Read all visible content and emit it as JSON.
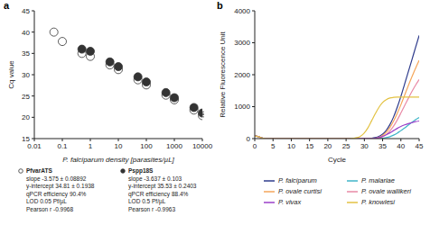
{
  "chart_data": [
    {
      "type": "scatter",
      "title": "a",
      "x_label": "P. falciparum density [parasites/µL]",
      "y_label": "Cq value",
      "log": "x",
      "grid": false,
      "xlim": [
        0.01,
        10000
      ],
      "xticks": [
        0.01,
        0.1,
        1,
        10,
        100,
        1000,
        10000
      ],
      "ylim": [
        15,
        45
      ],
      "yticks": [
        15,
        20,
        25,
        30,
        35,
        40,
        45
      ],
      "x": [
        0.05,
        0.1,
        0.5,
        1,
        5,
        10,
        50,
        100,
        500,
        1000,
        5000,
        10000
      ],
      "series": [
        {
          "name": "PfvarATS",
          "color": "#333333",
          "marker": "circle_open",
          "values": [
            40.0,
            37.8,
            35.0,
            34.3,
            32.3,
            31.2,
            28.8,
            27.6,
            25.2,
            24.1,
            21.7,
            20.4
          ],
          "errors": [
            0.5,
            0.6,
            0.3,
            0.3,
            0.3,
            0.3,
            0.3,
            0.3,
            0.3,
            0.3,
            0.3,
            0.3
          ],
          "annotation": [
            "slope -3.575 ± 0.08892",
            "y-intercept 34.81 ± 0.1938",
            "qPCR efficiency 90.4%",
            "LOD 0.05 Pf/µL",
            "Pearson r -0.9968"
          ]
        },
        {
          "name": "Pspp18S",
          "color": "#333333",
          "marker": "circle",
          "values": [
            null,
            null,
            36.0,
            35.5,
            33.0,
            31.9,
            29.5,
            28.3,
            25.8,
            24.6,
            22.3,
            21.0
          ],
          "errors": [
            null,
            null,
            0.3,
            0.3,
            0.3,
            0.3,
            0.3,
            0.3,
            0.3,
            0.3,
            0.3,
            0.3
          ],
          "annotation": [
            "slope -3.637 ± 0.103",
            "y-intercept 35.53 ± 0.2403",
            "qPCR efficiency 88.4%",
            "LOD 0.5 Pf/µL",
            "Pearson r -0.9963"
          ]
        }
      ]
    },
    {
      "type": "line",
      "title": "b",
      "x_label": "Cycle",
      "y_label": "Relative Fluorescence Unit",
      "grid": false,
      "legend": "bottom",
      "xlim": [
        0,
        45
      ],
      "xticks": [
        0,
        5,
        10,
        15,
        20,
        25,
        30,
        35,
        40,
        45
      ],
      "ylim": [
        0,
        4000
      ],
      "yticks": [
        0,
        1000,
        2000,
        3000,
        4000
      ],
      "x": [
        0,
        1,
        2,
        3,
        4,
        5,
        6,
        7,
        8,
        9,
        10,
        11,
        12,
        13,
        14,
        15,
        16,
        17,
        18,
        19,
        20,
        21,
        22,
        23,
        24,
        25,
        26,
        27,
        28,
        29,
        30,
        31,
        32,
        33,
        34,
        35,
        36,
        37,
        38,
        39,
        40,
        41,
        42,
        43,
        44,
        45
      ],
      "series": [
        {
          "name": "P. falciparum",
          "color": "#2e3b8c",
          "values": [
            80,
            60,
            20,
            0,
            0,
            0,
            0,
            0,
            0,
            0,
            0,
            0,
            0,
            0,
            0,
            0,
            0,
            0,
            0,
            0,
            0,
            0,
            0,
            0,
            0,
            0,
            0,
            0,
            0,
            0,
            0,
            0,
            10,
            30,
            70,
            140,
            260,
            440,
            680,
            980,
            1320,
            1700,
            2080,
            2460,
            2850,
            3230
          ]
        },
        {
          "name": "P. malariae",
          "color": "#3fb5c8",
          "values": [
            80,
            60,
            20,
            0,
            0,
            0,
            0,
            0,
            0,
            0,
            0,
            0,
            0,
            0,
            0,
            0,
            0,
            0,
            0,
            0,
            0,
            0,
            0,
            0,
            0,
            0,
            0,
            0,
            0,
            0,
            0,
            0,
            0,
            0,
            0,
            10,
            30,
            60,
            110,
            170,
            250,
            330,
            420,
            510,
            590,
            660
          ]
        },
        {
          "name": "P. ovale curtisi",
          "color": "#f5a65b",
          "values": [
            80,
            60,
            20,
            0,
            0,
            0,
            0,
            0,
            0,
            0,
            0,
            0,
            0,
            0,
            0,
            0,
            0,
            0,
            0,
            0,
            0,
            0,
            0,
            0,
            0,
            0,
            0,
            0,
            0,
            0,
            0,
            0,
            0,
            10,
            40,
            100,
            200,
            350,
            550,
            790,
            1060,
            1350,
            1650,
            1930,
            2200,
            2450
          ]
        },
        {
          "name": "P. ovale wallikeri",
          "color": "#e98aa6",
          "values": [
            80,
            60,
            20,
            0,
            0,
            0,
            0,
            0,
            0,
            0,
            0,
            0,
            0,
            0,
            0,
            0,
            0,
            0,
            0,
            0,
            0,
            0,
            0,
            0,
            0,
            0,
            0,
            0,
            0,
            0,
            0,
            0,
            0,
            0,
            20,
            60,
            130,
            240,
            390,
            580,
            800,
            1030,
            1250,
            1470,
            1670,
            1850
          ]
        },
        {
          "name": "P. vivax",
          "color": "#9b3fc9",
          "values": [
            80,
            60,
            20,
            0,
            0,
            0,
            0,
            0,
            0,
            0,
            0,
            0,
            0,
            0,
            0,
            0,
            0,
            0,
            0,
            0,
            0,
            0,
            0,
            0,
            0,
            0,
            0,
            0,
            0,
            0,
            0,
            0,
            0,
            10,
            30,
            70,
            120,
            180,
            250,
            320,
            380,
            430,
            470,
            500,
            530,
            550
          ]
        },
        {
          "name": "P. knowlesi",
          "color": "#e3c243",
          "values": [
            80,
            60,
            20,
            0,
            0,
            0,
            0,
            0,
            0,
            0,
            0,
            0,
            0,
            0,
            0,
            0,
            0,
            0,
            0,
            0,
            0,
            0,
            0,
            0,
            0,
            0,
            0,
            10,
            30,
            80,
            180,
            340,
            560,
            780,
            980,
            1130,
            1220,
            1270,
            1290,
            1300,
            1300,
            1300,
            1300,
            1300,
            1300,
            1300
          ]
        }
      ]
    }
  ]
}
